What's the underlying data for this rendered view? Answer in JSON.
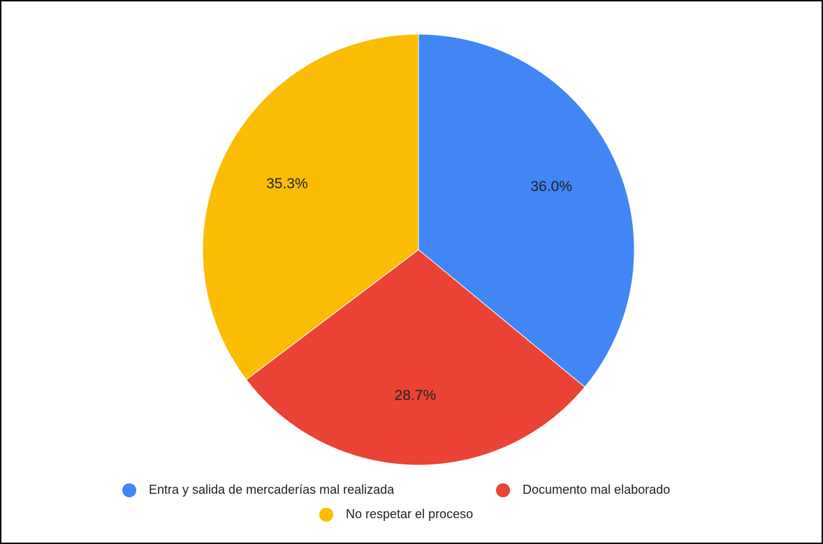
{
  "chart_data": {
    "type": "pie",
    "categories": [
      "Entra y salida de mercaderías mal realizada",
      "Documento mal elaborado",
      "No respetar el proceso"
    ],
    "values": [
      36.0,
      28.7,
      35.3
    ],
    "value_labels": [
      "36.0%",
      "28.7%",
      "35.3%"
    ],
    "colors": [
      "#4285f4",
      "#ea4335",
      "#fbbc04"
    ],
    "legend": "bottom"
  }
}
